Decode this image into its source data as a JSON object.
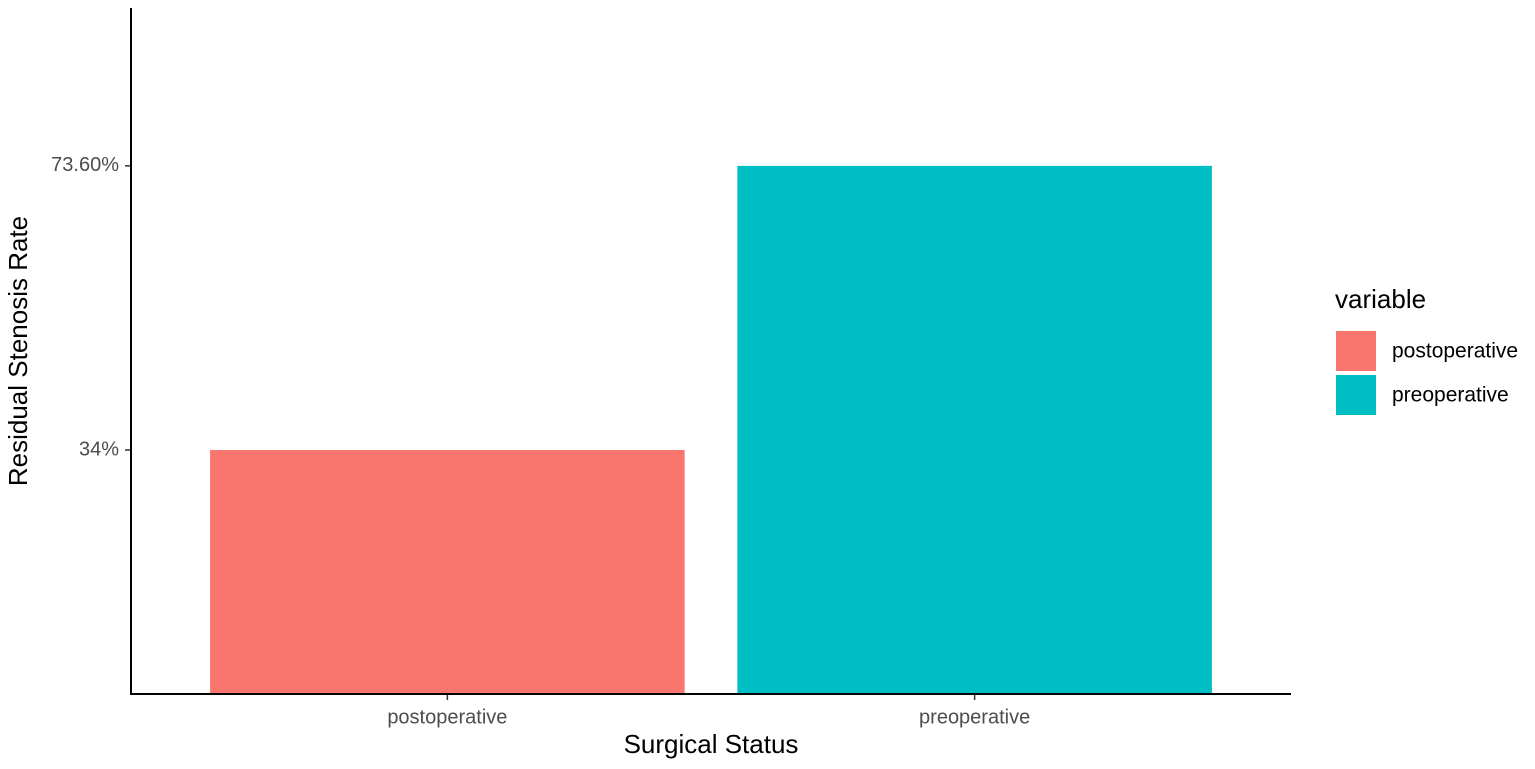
{
  "chart_data": {
    "type": "bar",
    "x_label": "Surgical Status",
    "y_label": "Residual Stenosis Rate",
    "categories": [
      "postoperative",
      "preoperative"
    ],
    "values": [
      34,
      73.6
    ],
    "colors": [
      "#f8766d",
      "#00bfc4"
    ],
    "ylim": [
      0,
      95.6
    ],
    "yticks": [
      {
        "value": 34,
        "label": "34%"
      },
      {
        "value": 73.6,
        "label": "73.60%"
      }
    ],
    "grid": false,
    "legend": {
      "title": "variable",
      "position": "right"
    }
  }
}
